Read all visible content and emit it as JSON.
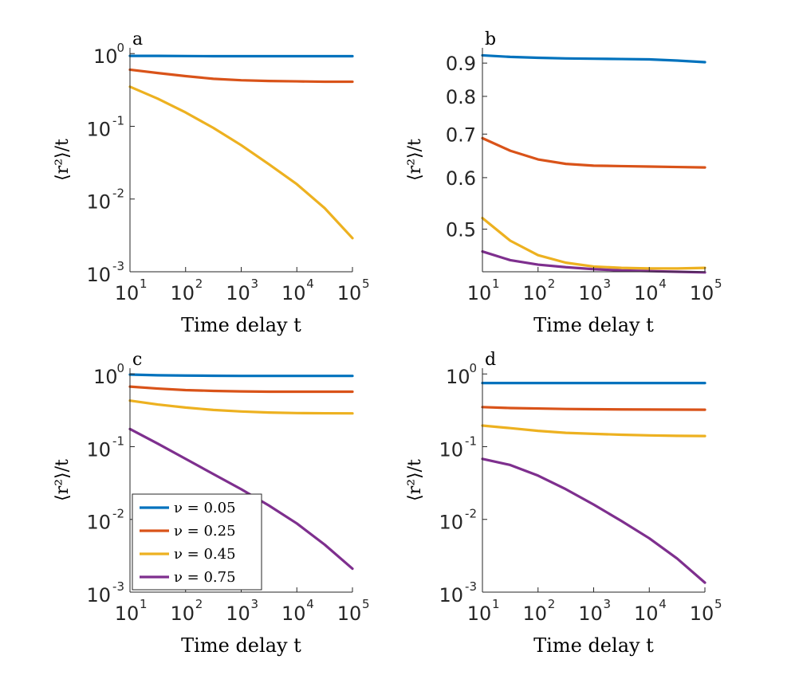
{
  "colors": {
    "nu_0.05": "#0072BD",
    "nu_0.25": "#D95319",
    "nu_0.45": "#EDB120",
    "nu_0.75": "#7E2F8E"
  },
  "legend": {
    "entries": [
      "ν = 0.05",
      "ν = 0.25",
      "ν = 0.45",
      "ν = 0.75"
    ]
  },
  "chart_data": [
    {
      "panel": "a",
      "type": "line",
      "xscale": "log",
      "yscale": "log",
      "xlabel": "Time delay t",
      "ylabel": "⟨r²⟩/t",
      "xlim": [
        10,
        100000
      ],
      "ylim": [
        0.001,
        1.2
      ],
      "xticks": [
        {
          "base": "10",
          "exp": "1"
        },
        {
          "base": "10",
          "exp": "2"
        },
        {
          "base": "10",
          "exp": "3"
        },
        {
          "base": "10",
          "exp": "4"
        },
        {
          "base": "10",
          "exp": "5"
        }
      ],
      "yticks": [
        {
          "base": "10",
          "exp": "0"
        },
        {
          "base": "10",
          "exp": "-1"
        },
        {
          "base": "10",
          "exp": "-2"
        },
        {
          "base": "10",
          "exp": "-3"
        }
      ],
      "x": [
        10,
        31.6,
        100,
        316,
        1000,
        3162,
        10000,
        31623,
        100000
      ],
      "series": [
        {
          "name": "ν = 0.05",
          "values": [
            0.93,
            0.93,
            0.925,
            0.92,
            0.92,
            0.92,
            0.92,
            0.92,
            0.92
          ]
        },
        {
          "name": "ν = 0.25",
          "values": [
            0.6,
            0.54,
            0.49,
            0.45,
            0.43,
            0.42,
            0.415,
            0.41,
            0.41
          ]
        },
        {
          "name": "ν = 0.45",
          "values": [
            0.35,
            0.24,
            0.155,
            0.095,
            0.055,
            0.03,
            0.016,
            0.0075,
            0.0029
          ]
        }
      ]
    },
    {
      "panel": "b",
      "type": "line",
      "xscale": "log",
      "yscale": "log",
      "xlabel": "Time delay t",
      "ylabel": "⟨r²⟩/t",
      "xlim": [
        10,
        100000
      ],
      "ylim": [
        0.43,
        0.95
      ],
      "xticks": [
        {
          "base": "10",
          "exp": "1"
        },
        {
          "base": "10",
          "exp": "2"
        },
        {
          "base": "10",
          "exp": "3"
        },
        {
          "base": "10",
          "exp": "4"
        },
        {
          "base": "10",
          "exp": "5"
        }
      ],
      "yticks": [
        {
          "value": 0.9,
          "label": "0.9"
        },
        {
          "value": 0.8,
          "label": "0.8"
        },
        {
          "value": 0.7,
          "label": "0.7"
        },
        {
          "value": 0.6,
          "label": "0.6"
        },
        {
          "value": 0.5,
          "label": "0.5"
        }
      ],
      "x": [
        10,
        31.6,
        100,
        316,
        1000,
        3162,
        10000,
        31623,
        100000
      ],
      "series": [
        {
          "name": "ν = 0.05",
          "values": [
            0.925,
            0.92,
            0.917,
            0.915,
            0.914,
            0.913,
            0.912,
            0.908,
            0.903
          ]
        },
        {
          "name": "ν = 0.25",
          "values": [
            0.69,
            0.66,
            0.64,
            0.63,
            0.626,
            0.625,
            0.624,
            0.623,
            0.622
          ]
        },
        {
          "name": "ν = 0.45",
          "values": [
            0.52,
            0.48,
            0.456,
            0.444,
            0.438,
            0.436,
            0.435,
            0.435,
            0.436
          ]
        },
        {
          "name": "ν = 0.75",
          "values": [
            0.462,
            0.448,
            0.441,
            0.437,
            0.434,
            0.432,
            0.431,
            0.43,
            0.429
          ]
        }
      ]
    },
    {
      "panel": "c",
      "type": "line",
      "xscale": "log",
      "yscale": "log",
      "xlabel": "Time delay t",
      "ylabel": "⟨r²⟩/t",
      "xlim": [
        10,
        100000
      ],
      "ylim": [
        0.001,
        1.2
      ],
      "xticks": [
        {
          "base": "10",
          "exp": "1"
        },
        {
          "base": "10",
          "exp": "2"
        },
        {
          "base": "10",
          "exp": "3"
        },
        {
          "base": "10",
          "exp": "4"
        },
        {
          "base": "10",
          "exp": "5"
        }
      ],
      "yticks": [
        {
          "base": "10",
          "exp": "0"
        },
        {
          "base": "10",
          "exp": "-1"
        },
        {
          "base": "10",
          "exp": "-2"
        },
        {
          "base": "10",
          "exp": "-3"
        }
      ],
      "x": [
        10,
        31.6,
        100,
        316,
        1000,
        3162,
        10000,
        31623,
        100000
      ],
      "series": [
        {
          "name": "ν = 0.05",
          "values": [
            0.98,
            0.96,
            0.95,
            0.945,
            0.94,
            0.94,
            0.94,
            0.94,
            0.94
          ]
        },
        {
          "name": "ν = 0.25",
          "values": [
            0.67,
            0.63,
            0.6,
            0.585,
            0.575,
            0.57,
            0.57,
            0.57,
            0.57
          ]
        },
        {
          "name": "ν = 0.45",
          "values": [
            0.43,
            0.38,
            0.345,
            0.32,
            0.305,
            0.295,
            0.29,
            0.288,
            0.287
          ]
        },
        {
          "name": "ν = 0.75",
          "values": [
            0.175,
            0.11,
            0.068,
            0.042,
            0.026,
            0.0155,
            0.0088,
            0.0045,
            0.0021
          ]
        }
      ]
    },
    {
      "panel": "d",
      "type": "line",
      "xscale": "log",
      "yscale": "log",
      "xlabel": "Time delay t",
      "ylabel": "⟨r²⟩/t",
      "xlim": [
        10,
        100000
      ],
      "ylim": [
        0.001,
        1.2
      ],
      "xticks": [
        {
          "base": "10",
          "exp": "1"
        },
        {
          "base": "10",
          "exp": "2"
        },
        {
          "base": "10",
          "exp": "3"
        },
        {
          "base": "10",
          "exp": "4"
        },
        {
          "base": "10",
          "exp": "5"
        }
      ],
      "yticks": [
        {
          "base": "10",
          "exp": "0"
        },
        {
          "base": "10",
          "exp": "-1"
        },
        {
          "base": "10",
          "exp": "-2"
        },
        {
          "base": "10",
          "exp": "-3"
        }
      ],
      "x": [
        10,
        31.6,
        100,
        316,
        1000,
        3162,
        10000,
        31623,
        100000
      ],
      "series": [
        {
          "name": "ν = 0.05",
          "values": [
            0.75,
            0.75,
            0.75,
            0.75,
            0.75,
            0.75,
            0.75,
            0.75,
            0.75
          ]
        },
        {
          "name": "ν = 0.25",
          "values": [
            0.35,
            0.34,
            0.335,
            0.33,
            0.327,
            0.325,
            0.324,
            0.323,
            0.322
          ]
        },
        {
          "name": "ν = 0.45",
          "values": [
            0.195,
            0.18,
            0.165,
            0.155,
            0.15,
            0.146,
            0.143,
            0.141,
            0.14
          ]
        },
        {
          "name": "ν = 0.75",
          "values": [
            0.068,
            0.056,
            0.04,
            0.026,
            0.016,
            0.0095,
            0.0055,
            0.0029,
            0.00135
          ]
        }
      ]
    }
  ]
}
